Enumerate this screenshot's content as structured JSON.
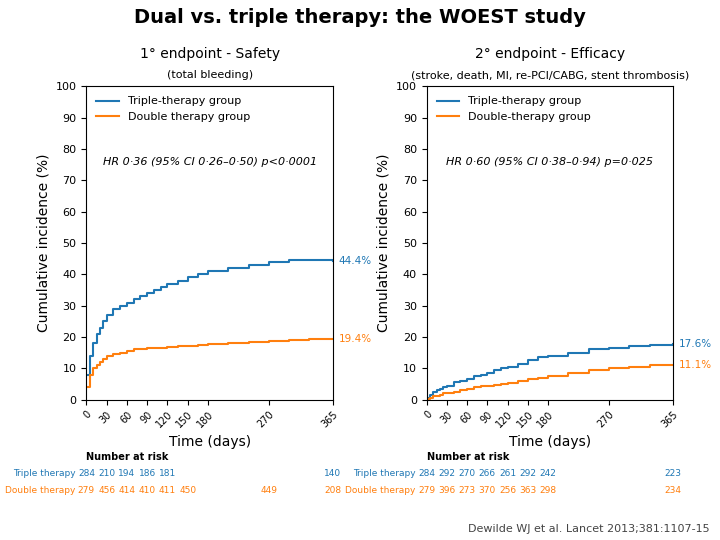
{
  "title": "Dual vs. triple therapy: the WOEST study",
  "annotations": [
    "Dewilde WJ et al. Lancet 2013;381:1107-15"
  ],
  "chart_data": [
    {
      "type": "step",
      "title": "1° endpoint - Safety",
      "subtitle": "(total bleeding)",
      "x_label": "Time (days)",
      "y_label": "Cumulative incidence (%)",
      "xlim": [
        0,
        365
      ],
      "ylim": [
        0,
        100
      ],
      "xticks": [
        0,
        30,
        60,
        90,
        120,
        150,
        180,
        270,
        365
      ],
      "yticks": [
        0,
        10,
        20,
        30,
        40,
        50,
        60,
        70,
        80,
        90,
        100
      ],
      "legend": "upper left",
      "annotations": [
        "HR 0·36 (95% CI 0·26–0·50) p<0·0001"
      ],
      "series": [
        {
          "name": "Triple-therapy group",
          "x": [
            0,
            5,
            10,
            15,
            20,
            25,
            30,
            40,
            50,
            60,
            70,
            80,
            90,
            100,
            110,
            120,
            135,
            150,
            165,
            180,
            210,
            240,
            270,
            300,
            330,
            365
          ],
          "values": [
            8,
            14,
            18,
            21,
            23,
            25,
            27,
            29,
            30,
            31,
            32,
            33,
            34,
            35,
            36,
            37,
            38,
            39,
            40,
            41,
            42,
            43,
            44,
            44.5,
            44.5,
            44.4
          ],
          "value_labels": [
            null,
            null,
            null,
            null,
            null,
            null,
            null,
            null,
            null,
            null,
            null,
            null,
            null,
            null,
            null,
            null,
            null,
            null,
            null,
            null,
            null,
            null,
            null,
            null,
            null,
            "44.4%"
          ]
        },
        {
          "name": "Double therapy group",
          "x": [
            0,
            5,
            10,
            15,
            20,
            25,
            30,
            40,
            50,
            60,
            70,
            80,
            90,
            100,
            110,
            120,
            135,
            150,
            165,
            180,
            210,
            240,
            270,
            300,
            330,
            365
          ],
          "values": [
            4,
            8,
            10,
            11,
            12,
            13,
            14,
            14.5,
            15,
            15.5,
            16,
            16.2,
            16.4,
            16.5,
            16.6,
            16.7,
            17.0,
            17.2,
            17.5,
            17.7,
            18.0,
            18.5,
            18.8,
            19.0,
            19.2,
            19.4
          ],
          "value_labels": [
            null,
            null,
            null,
            null,
            null,
            null,
            null,
            null,
            null,
            null,
            null,
            null,
            null,
            null,
            null,
            null,
            null,
            null,
            null,
            null,
            null,
            null,
            null,
            null,
            null,
            "19.4%"
          ]
        }
      ],
      "risk_table": {
        "title": "Number at risk",
        "x": [
          0,
          30,
          60,
          90,
          120,
          150,
          180,
          270,
          365
        ],
        "rows": [
          {
            "name": "Triple therapy",
            "values": [
              284,
              210,
              194,
              186,
              181,
              null,
              null,
              null,
              140
            ]
          },
          {
            "name": "Double therapy",
            "values": [
              279,
              456,
              414,
              410,
              411,
              450,
              null,
              449,
              208
            ]
          }
        ]
      }
    },
    {
      "type": "step",
      "title": "2° endpoint - Efficacy",
      "subtitle": "(stroke, death, MI, re-PCI/CABG, stent thrombosis)",
      "x_label": "Time (days)",
      "y_label": "Cumulative incidence (%)",
      "xlim": [
        0,
        365
      ],
      "ylim": [
        0,
        100
      ],
      "xticks": [
        0,
        30,
        60,
        90,
        120,
        150,
        180,
        270,
        365
      ],
      "yticks": [
        0,
        10,
        20,
        30,
        40,
        50,
        60,
        70,
        80,
        90,
        100
      ],
      "legend": "upper left",
      "annotations": [
        "HR 0·60 (95% CI 0·38–0·94) p=0·025"
      ],
      "series": [
        {
          "name": "Triple-therapy group",
          "x": [
            0,
            5,
            10,
            15,
            20,
            25,
            30,
            40,
            50,
            60,
            70,
            80,
            90,
            100,
            110,
            120,
            135,
            150,
            165,
            180,
            210,
            240,
            270,
            300,
            330,
            365
          ],
          "values": [
            0.5,
            1.5,
            2.5,
            3.0,
            3.5,
            4.0,
            4.5,
            5.5,
            6.0,
            6.5,
            7.5,
            8.0,
            8.5,
            9.5,
            10.0,
            10.5,
            11.5,
            12.5,
            13.5,
            14.0,
            15.0,
            16.0,
            16.5,
            17.0,
            17.5,
            17.6
          ],
          "value_labels": [
            null,
            null,
            null,
            null,
            null,
            null,
            null,
            null,
            null,
            null,
            null,
            null,
            null,
            null,
            null,
            null,
            null,
            null,
            null,
            null,
            null,
            null,
            null,
            null,
            null,
            "17.6%"
          ]
        },
        {
          "name": "Double-therapy group",
          "x": [
            0,
            5,
            10,
            15,
            20,
            25,
            30,
            40,
            50,
            60,
            70,
            80,
            90,
            100,
            110,
            120,
            135,
            150,
            165,
            180,
            210,
            240,
            270,
            300,
            330,
            365
          ],
          "values": [
            0.2,
            0.5,
            1.0,
            1.2,
            1.5,
            2.0,
            2.2,
            2.5,
            3.0,
            3.5,
            4.0,
            4.2,
            4.4,
            4.7,
            5.0,
            5.2,
            6.0,
            6.5,
            7.0,
            7.5,
            8.5,
            9.5,
            10.0,
            10.5,
            11.0,
            11.1
          ],
          "value_labels": [
            null,
            null,
            null,
            null,
            null,
            null,
            null,
            null,
            null,
            null,
            null,
            null,
            null,
            null,
            null,
            null,
            null,
            null,
            null,
            null,
            null,
            null,
            null,
            null,
            null,
            "11.1%"
          ]
        }
      ],
      "risk_table": {
        "title": "Number at risk",
        "x": [
          0,
          30,
          60,
          90,
          120,
          150,
          180,
          270,
          365
        ],
        "rows": [
          {
            "name": "Triple therapy",
            "values": [
              284,
              292,
              270,
              266,
              261,
              292,
              242,
              null,
              223
            ]
          },
          {
            "name": "Double therapy",
            "values": [
              279,
              396,
              273,
              370,
              256,
              363,
              298,
              null,
              234
            ]
          }
        ]
      }
    }
  ]
}
